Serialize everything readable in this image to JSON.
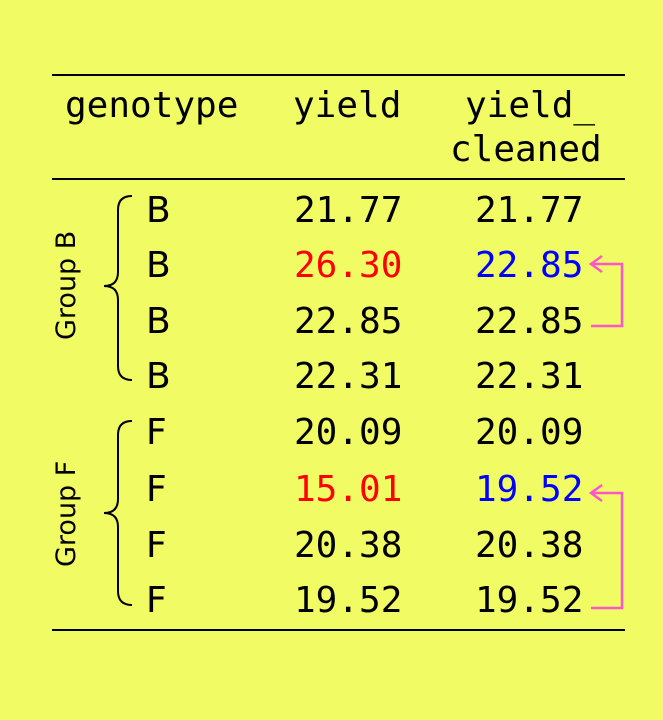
{
  "headers": {
    "genotype": "genotype",
    "yield": "yield",
    "yield_cleaned_line1": "yield_",
    "yield_cleaned_line2": "cleaned"
  },
  "groups": [
    {
      "label": "Group B"
    },
    {
      "label": "Group F"
    }
  ],
  "rows": [
    {
      "genotype": "B",
      "yield": "21.77",
      "yield_cleaned": "21.77"
    },
    {
      "genotype": "B",
      "yield": "26.30",
      "yield_cleaned": "22.85"
    },
    {
      "genotype": "B",
      "yield": "22.85",
      "yield_cleaned": "22.85"
    },
    {
      "genotype": "B",
      "yield": "22.31",
      "yield_cleaned": "22.31"
    },
    {
      "genotype": "F",
      "yield": "20.09",
      "yield_cleaned": "20.09"
    },
    {
      "genotype": "F",
      "yield": "15.01",
      "yield_cleaned": "19.52"
    },
    {
      "genotype": "F",
      "yield": "20.38",
      "yield_cleaned": "20.38"
    },
    {
      "genotype": "F",
      "yield": "19.52",
      "yield_cleaned": "19.52"
    }
  ],
  "colors": {
    "background": "#f1fb63",
    "outlier": "#ff0000",
    "replacement": "#0000ff",
    "arrow": "#ff55cc"
  }
}
